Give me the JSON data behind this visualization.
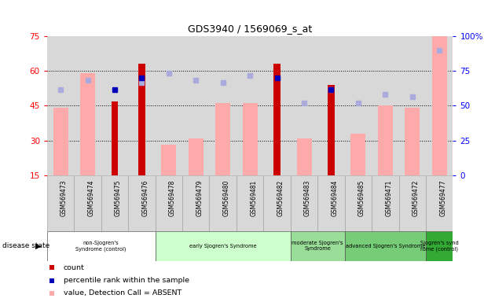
{
  "title": "GDS3940 / 1569069_s_at",
  "samples": [
    "GSM569473",
    "GSM569474",
    "GSM569475",
    "GSM569476",
    "GSM569478",
    "GSM569479",
    "GSM569480",
    "GSM569481",
    "GSM569482",
    "GSM569483",
    "GSM569484",
    "GSM569485",
    "GSM569471",
    "GSM569472",
    "GSM569477"
  ],
  "count_values": [
    null,
    null,
    47,
    63,
    null,
    null,
    null,
    null,
    63,
    null,
    54,
    null,
    null,
    null,
    null
  ],
  "pink_values": [
    44,
    59,
    null,
    null,
    28,
    31,
    46,
    46,
    null,
    31,
    null,
    33,
    45,
    44,
    75
  ],
  "blue_square_values": [
    null,
    null,
    52,
    57,
    null,
    null,
    null,
    null,
    57,
    null,
    52,
    null,
    null,
    null,
    null
  ],
  "light_blue_values": [
    52,
    56,
    null,
    55,
    59,
    56,
    55,
    58,
    null,
    46,
    52,
    46,
    50,
    49,
    69
  ],
  "ylim": [
    15,
    75
  ],
  "yticks": [
    15,
    30,
    45,
    60,
    75
  ],
  "y2ticks": [
    0,
    25,
    50,
    75,
    100
  ],
  "group_colors": [
    "#ffffff",
    "#ccffcc",
    "#99dd99",
    "#77cc77",
    "#33aa33"
  ],
  "group_labels": [
    "non-Sjogren's\nSyndrome (control)",
    "early Sjogren's Syndrome",
    "moderate Sjogren's\nSyndrome",
    "advanced Sjogren's Syndrome",
    "Sjogren's synd\nrome (control)"
  ],
  "group_ranges": [
    [
      0,
      4
    ],
    [
      4,
      9
    ],
    [
      9,
      11
    ],
    [
      11,
      14
    ],
    [
      14,
      15
    ]
  ],
  "color_red": "#cc0000",
  "color_pink": "#ffaaaa",
  "color_blue_sq": "#0000bb",
  "color_light_blue": "#aaaadd",
  "bg_color": "#d8d8d8",
  "legend_items": [
    {
      "color": "#cc0000",
      "label": "count"
    },
    {
      "color": "#0000bb",
      "label": "percentile rank within the sample"
    },
    {
      "color": "#ffaaaa",
      "label": "value, Detection Call = ABSENT"
    },
    {
      "color": "#aaaadd",
      "label": "rank, Detection Call = ABSENT"
    }
  ]
}
